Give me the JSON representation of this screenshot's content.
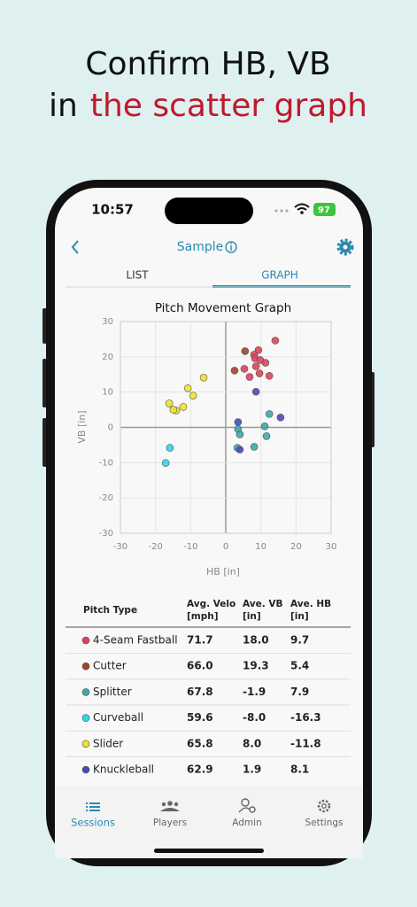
{
  "headline": {
    "line1": "Confirm HB, VB",
    "line2_prefix": "in",
    "line2_highlight": "the scatter graph"
  },
  "status_bar": {
    "time": "10:57",
    "battery": "97"
  },
  "nav": {
    "title": "Sample"
  },
  "tabs": {
    "items": [
      "LIST",
      "GRAPH"
    ],
    "active": 1
  },
  "chart_data": {
    "type": "scatter",
    "title": "Pitch Movement Graph",
    "x_label": "HB [in]",
    "y_label": "VB [in]",
    "xlim": [
      -30,
      30
    ],
    "ylim": [
      -30,
      30
    ],
    "xticks": [
      -30,
      -20,
      -10,
      0,
      10,
      20,
      30
    ],
    "yticks": [
      -30,
      -20,
      -10,
      0,
      10,
      20,
      30
    ],
    "grid": true,
    "series": [
      {
        "name": "4-Seam Fastball",
        "color": "#e0405a",
        "x": [
          14.1,
          9.3,
          8.1,
          8.3,
          5.3,
          8.6,
          11.3,
          9.8,
          6.8,
          9.6,
          12.4
        ],
        "values": [
          24.6,
          21.9,
          20.6,
          19.6,
          16.6,
          17.3,
          18.3,
          19.1,
          14.3,
          15.3,
          14.6
        ]
      },
      {
        "name": "Cutter",
        "color": "#a0452e",
        "x": [
          5.5,
          2.5
        ],
        "values": [
          21.6,
          16.1
        ]
      },
      {
        "name": "Splitter",
        "color": "#3aaaaa",
        "x": [
          12.4,
          3.5,
          4.0,
          11.1,
          11.6,
          8.1,
          3.3
        ],
        "values": [
          3.8,
          -0.5,
          -2.0,
          0.3,
          -2.5,
          -5.5,
          -5.8
        ]
      },
      {
        "name": "Curveball",
        "color": "#2ad8e8",
        "x": [
          -15.9,
          -17.1
        ],
        "values": [
          -5.8,
          -10.1
        ]
      },
      {
        "name": "Slider",
        "color": "#f0e030",
        "x": [
          -6.3,
          -10.8,
          -9.3,
          -16.1,
          -12.1,
          -14.1,
          -14.9
        ],
        "values": [
          14.1,
          11.1,
          9.0,
          6.8,
          5.8,
          4.8,
          5.0
        ]
      },
      {
        "name": "Knuckleball",
        "color": "#4a4ab8",
        "x": [
          8.6,
          3.5,
          15.6,
          4.0
        ],
        "values": [
          10.1,
          1.5,
          2.8,
          -6.3
        ]
      }
    ]
  },
  "table": {
    "header": [
      [
        "Pitch Type"
      ],
      [
        "Avg. Velo",
        "[mph]"
      ],
      [
        "Ave. VB",
        "[in]"
      ],
      [
        "Ave. HB",
        "[in]"
      ]
    ],
    "rows": [
      [
        "71.7",
        "18.0",
        "9.7"
      ],
      [
        "66.0",
        "19.3",
        "5.4"
      ],
      [
        "67.8",
        "-1.9",
        "7.9"
      ],
      [
        "59.6",
        "-8.0",
        "-16.3"
      ],
      [
        "65.8",
        "8.0",
        "-11.8"
      ],
      [
        "62.9",
        "1.9",
        "8.1"
      ]
    ]
  },
  "tab_bar": {
    "items": [
      "Sessions",
      "Players",
      "Admin",
      "Settings"
    ],
    "active": 0
  }
}
